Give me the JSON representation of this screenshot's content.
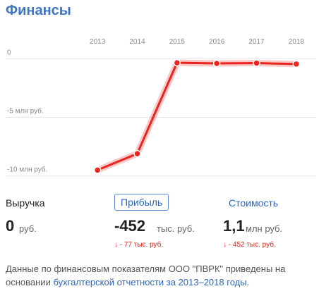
{
  "header": {
    "title": "Финансы"
  },
  "chart_data": {
    "type": "line",
    "categories": [
      "2013",
      "2014",
      "2015",
      "2016",
      "2017",
      "2018"
    ],
    "values": [
      -9.5,
      -8.1,
      -0.35,
      -0.4,
      -0.375,
      -0.452
    ],
    "color": "#e8261f",
    "ylim": [
      -10.5,
      0.8
    ],
    "yticks": [
      0,
      {
        "value": -5,
        "label": "-5 млн руб."
      },
      {
        "value": -10,
        "label": "-10 млн руб."
      }
    ],
    "grid": true
  },
  "metrics": [
    {
      "label": "Выручка",
      "value": "0",
      "unit": "руб."
    },
    {
      "label": "Прибыль",
      "value": "-452",
      "unit": "тыс. руб.",
      "change": "↓ - 77 тыс. руб."
    },
    {
      "label": "Стоимость",
      "value": "1,1",
      "unit": "млн руб.",
      "change": "↓ - 452 тыс. руб."
    }
  ],
  "footer": {
    "text": "Данные по финансовым показателям ООО \"ПВРК\" приведены на основании ",
    "link": "бухгалтерской отчетности за 2013–2018 годы",
    "end": "."
  }
}
